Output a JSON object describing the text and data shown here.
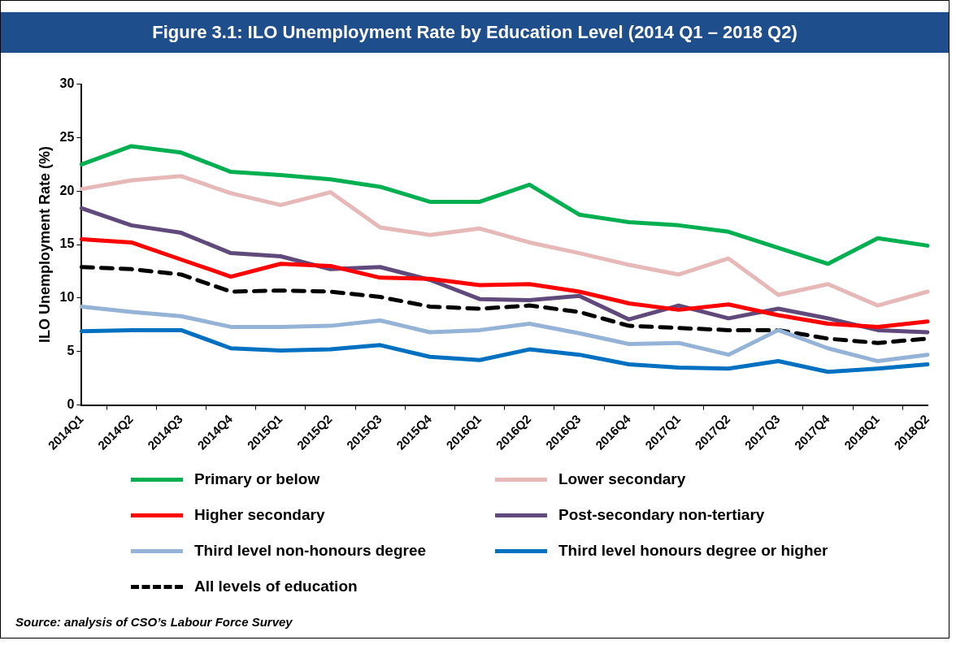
{
  "chart_data": {
    "type": "line",
    "title": "Figure 3.1: ILO Unemployment Rate by Education Level (2014 Q1 – 2018 Q2)",
    "ylabel": "ILO Unemployment Rate (%)",
    "categories": [
      "2014Q1",
      "2014Q2",
      "2014Q3",
      "2014Q4",
      "2015Q1",
      "2015Q2",
      "2015Q3",
      "2015Q4",
      "2016Q1",
      "2016Q2",
      "2016Q3",
      "2016Q4",
      "2017Q1",
      "2017Q2",
      "2017Q3",
      "2017Q4",
      "2018Q1",
      "2018Q2"
    ],
    "series": [
      {
        "name": "Primary or below",
        "color": "#00b050",
        "values": [
          22.5,
          24.2,
          23.6,
          21.8,
          21.5,
          21.1,
          20.4,
          19.0,
          19.0,
          20.6,
          17.8,
          17.1,
          16.8,
          16.2,
          14.7,
          13.2,
          15.6,
          14.9
        ]
      },
      {
        "name": "Lower secondary",
        "color": "#e6b9b8",
        "values": [
          20.2,
          21.0,
          21.4,
          19.8,
          18.7,
          19.9,
          16.6,
          15.9,
          16.5,
          15.2,
          14.2,
          13.1,
          12.2,
          13.7,
          10.3,
          11.3,
          9.3,
          10.6
        ]
      },
      {
        "name": "Higher secondary",
        "color": "#ff0000",
        "values": [
          15.5,
          15.2,
          13.6,
          12.0,
          13.2,
          13.0,
          11.9,
          11.8,
          11.2,
          11.3,
          10.6,
          9.5,
          8.9,
          9.4,
          8.4,
          7.6,
          7.3,
          7.8
        ]
      },
      {
        "name": "Post-secondary non-tertiary",
        "color": "#604a7b",
        "values": [
          18.4,
          16.8,
          16.1,
          14.2,
          13.9,
          12.7,
          12.9,
          11.7,
          9.9,
          9.8,
          10.2,
          8.0,
          9.3,
          8.1,
          9.0,
          8.1,
          7.0,
          6.8
        ]
      },
      {
        "name": "Third level non-honours degree",
        "color": "#95b3d7",
        "values": [
          9.2,
          8.7,
          8.3,
          7.3,
          7.3,
          7.4,
          7.9,
          6.8,
          7.0,
          7.6,
          6.7,
          5.7,
          5.8,
          4.7,
          7.0,
          5.3,
          4.1,
          4.7
        ]
      },
      {
        "name": "Third level honours degree or higher",
        "color": "#0070c0",
        "values": [
          6.9,
          7.0,
          7.0,
          5.3,
          5.1,
          5.2,
          5.6,
          4.5,
          4.2,
          5.2,
          4.7,
          3.8,
          3.5,
          3.4,
          4.1,
          3.1,
          3.4,
          3.8
        ]
      },
      {
        "name": "All levels of education",
        "color": "#000000",
        "line_style": "dashed",
        "values": [
          12.9,
          12.7,
          12.2,
          10.6,
          10.7,
          10.6,
          10.1,
          9.2,
          9.0,
          9.3,
          8.7,
          7.4,
          7.2,
          7.0,
          7.0,
          6.2,
          5.8,
          6.2
        ]
      }
    ],
    "ylim": [
      0,
      30
    ],
    "yticks": [
      0,
      5,
      10,
      15,
      20,
      25,
      30
    ],
    "grid": false,
    "legend": "bottom",
    "marker": "none",
    "annotations": [
      "Source: analysis of CSO’s Labour Force Survey"
    ]
  }
}
